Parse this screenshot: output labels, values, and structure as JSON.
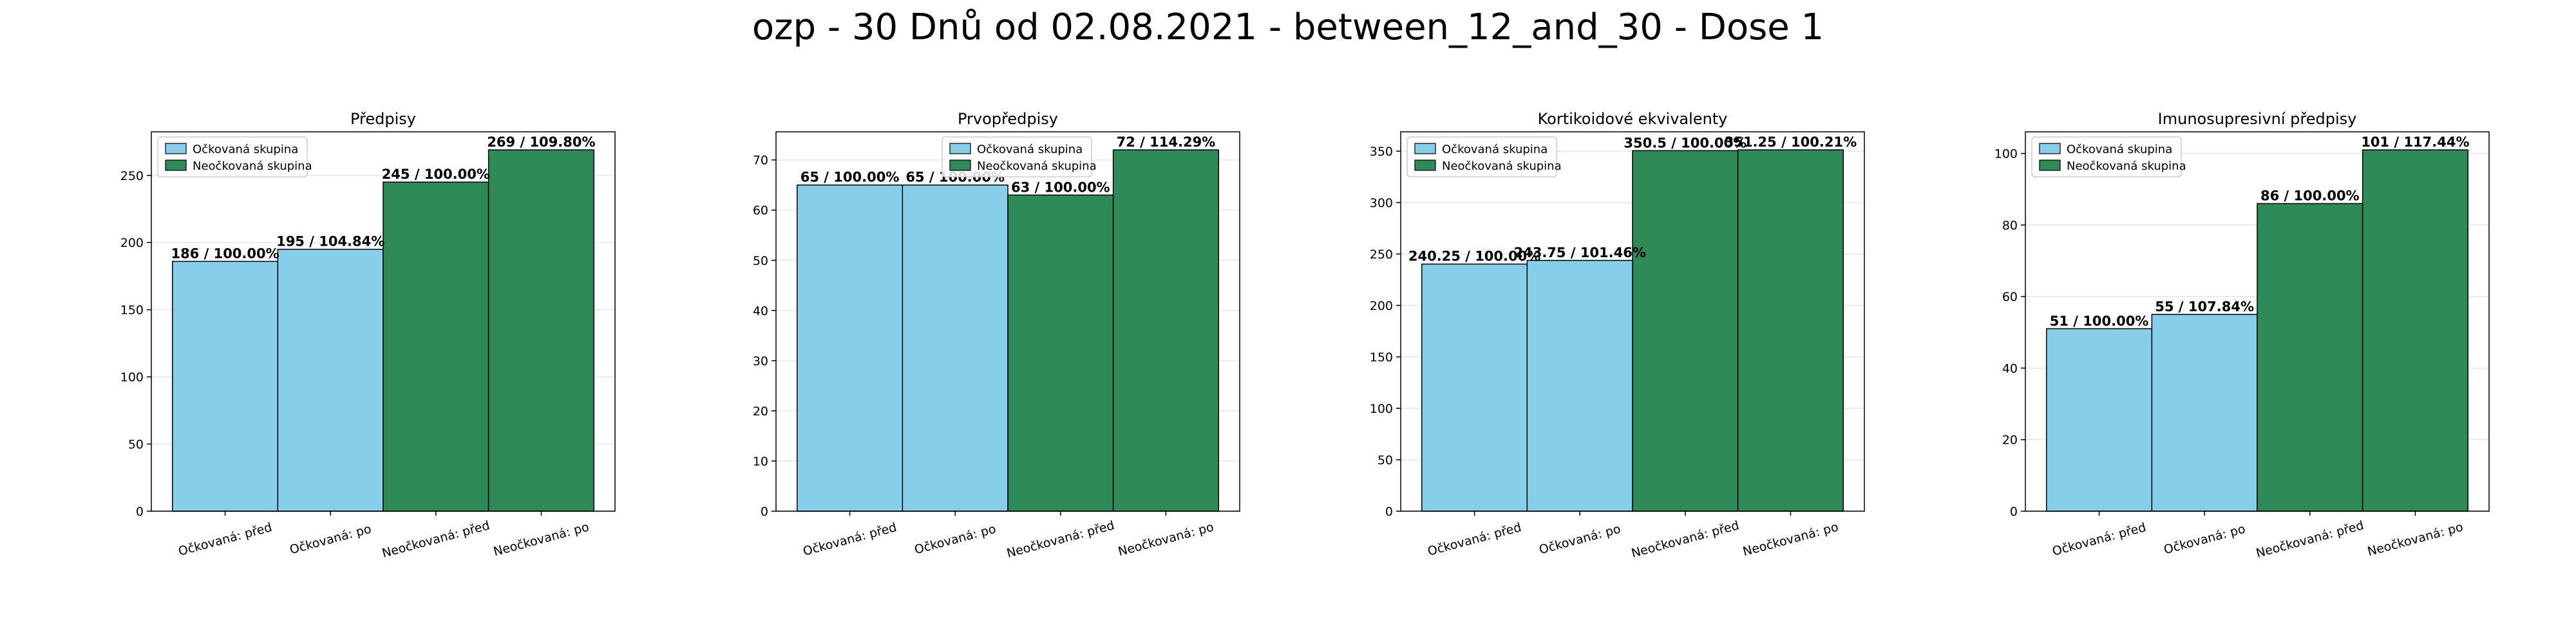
{
  "suptitle": "ozp - 30 Dnů od 02.08.2021 - between_12_and_30 - Dose 1",
  "colors": {
    "vaccinated": "#87CEEB",
    "unvaccinated": "#2E8B57",
    "edge": "#000000",
    "grid": "#e6e6e6"
  },
  "legend": {
    "entries": [
      "Očkovaná skupina",
      "Neočkovaná skupina"
    ]
  },
  "chart_data": [
    {
      "type": "bar",
      "title": "Předpisy",
      "categories": [
        "Očkovaná: před",
        "Očkovaná: po",
        "Neočkovaná: před",
        "Neočkovaná: po"
      ],
      "values": [
        186,
        195,
        245,
        269
      ],
      "labels": [
        "186 / 100.00%",
        "195 / 104.84%",
        "245 / 100.00%",
        "269 / 109.80%"
      ],
      "groups": [
        "vaccinated",
        "vaccinated",
        "unvaccinated",
        "unvaccinated"
      ],
      "ylim": [
        0,
        282.45
      ],
      "yticks": [
        0,
        50,
        100,
        150,
        200,
        250
      ],
      "grid": "y",
      "legend_position": "upper left"
    },
    {
      "type": "bar",
      "title": "Prvopředpisy",
      "categories": [
        "Očkovaná: před",
        "Očkovaná: po",
        "Neočkovaná: před",
        "Neočkovaná: po"
      ],
      "values": [
        65,
        65,
        63,
        72
      ],
      "labels": [
        "65 / 100.00%",
        "65 / 100.00%",
        "63 / 100.00%",
        "72 / 114.29%"
      ],
      "groups": [
        "vaccinated",
        "vaccinated",
        "unvaccinated",
        "unvaccinated"
      ],
      "ylim": [
        0,
        75.6
      ],
      "yticks": [
        0,
        10,
        20,
        30,
        40,
        50,
        60,
        70
      ],
      "grid": "y",
      "legend_position": "upper center"
    },
    {
      "type": "bar",
      "title": "Kortikoidové ekvivalenty",
      "categories": [
        "Očkovaná: před",
        "Očkovaná: po",
        "Neočkovaná: před",
        "Neočkovaná: po"
      ],
      "values": [
        240.25,
        243.75,
        350.5,
        351.25
      ],
      "labels": [
        "240.25 / 100.00%",
        "243.75 / 101.46%",
        "350.5 / 100.00%",
        "351.25 / 100.21%"
      ],
      "groups": [
        "vaccinated",
        "vaccinated",
        "unvaccinated",
        "unvaccinated"
      ],
      "ylim": [
        0,
        368.8
      ],
      "yticks": [
        0,
        50,
        100,
        150,
        200,
        250,
        300,
        350
      ],
      "grid": "y",
      "legend_position": "upper left"
    },
    {
      "type": "bar",
      "title": "Imunosupresivní předpisy",
      "categories": [
        "Očkovaná: před",
        "Očkovaná: po",
        "Neočkovaná: před",
        "Neočkovaná: po"
      ],
      "values": [
        51,
        55,
        86,
        101
      ],
      "labels": [
        "51 / 100.00%",
        "55 / 107.84%",
        "86 / 100.00%",
        "101 / 117.44%"
      ],
      "groups": [
        "vaccinated",
        "vaccinated",
        "unvaccinated",
        "unvaccinated"
      ],
      "ylim": [
        0,
        106.05
      ],
      "yticks": [
        0,
        20,
        40,
        60,
        80,
        100
      ],
      "grid": "y",
      "legend_position": "upper left"
    }
  ]
}
